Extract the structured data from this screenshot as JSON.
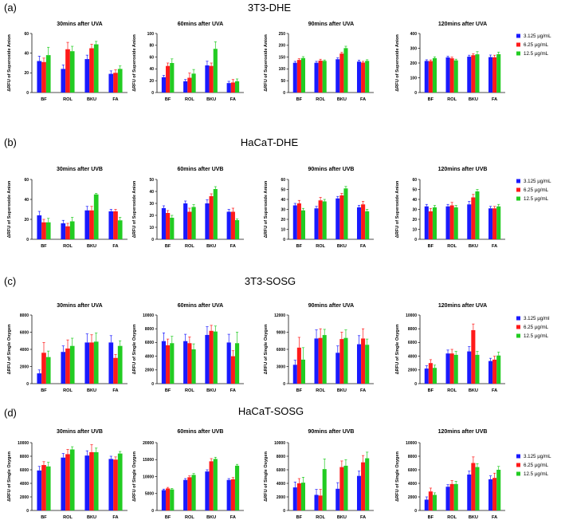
{
  "colors": {
    "s1": "#1a1aff",
    "s2": "#ff1a1a",
    "s3": "#22cc22"
  },
  "panels": [
    {
      "letter": "(a)",
      "title": "3T3-DHE",
      "legend": [
        "3.125 µg/mL",
        "6.25 µg/mL",
        "12.5 µg/mL"
      ]
    },
    {
      "letter": "(b)",
      "title": "HaCaT-DHE",
      "legend": [
        "3.125 µg/mL",
        "6.25 µg/mL",
        "12.5 µg/mL"
      ]
    },
    {
      "letter": "(c)",
      "title": "3T3-SOSG",
      "legend": [
        "3.125 µg/ml",
        "6.25 µg/mL",
        "12.5 µg/mL"
      ]
    },
    {
      "letter": "(d)",
      "title": "HaCaT-SOSG",
      "legend": [
        "3.125 µg/mL",
        "6.25 µg/mL",
        "12.5 µg/mL"
      ]
    }
  ],
  "chart_data": [
    {
      "type": "bar",
      "panel": "(a)",
      "title": "30mins after UVA",
      "ylabel": "ΔRFU of Superoxide Anion",
      "categories": [
        "BF",
        "ROL",
        "BKU",
        "FA"
      ],
      "ylim": [
        0,
        60
      ],
      "yticks": [
        "0",
        "20",
        "40",
        "60"
      ],
      "series": [
        {
          "name": "3.125 µg/mL",
          "values": [
            32,
            24,
            34,
            19
          ],
          "errors": [
            5,
            4,
            4,
            3
          ]
        },
        {
          "name": "6.25 µg/mL",
          "values": [
            31,
            44,
            45,
            20
          ],
          "errors": [
            4,
            7,
            4,
            3
          ]
        },
        {
          "name": "12.5 µg/mL",
          "values": [
            38,
            42,
            49,
            24
          ],
          "errors": [
            8,
            5,
            3,
            3
          ]
        }
      ]
    },
    {
      "type": "bar",
      "panel": "(a)",
      "title": "60mins after UVA",
      "ylabel": "ΔRFU of Superoxide Anion",
      "categories": [
        "BF",
        "ROL",
        "BKU",
        "FA"
      ],
      "ylim": [
        0,
        100
      ],
      "yticks": [
        "0",
        "20",
        "40",
        "60",
        "80",
        "100"
      ],
      "series": [
        {
          "name": "3.125 µg/mL",
          "values": [
            26,
            19,
            46,
            16
          ],
          "errors": [
            3,
            3,
            7,
            3
          ]
        },
        {
          "name": "6.25 µg/mL",
          "values": [
            45,
            25,
            45,
            17
          ],
          "errors": [
            5,
            8,
            5,
            5
          ]
        },
        {
          "name": "12.5 µg/mL",
          "values": [
            50,
            32,
            74,
            19
          ],
          "errors": [
            7,
            7,
            12,
            4
          ]
        }
      ]
    },
    {
      "type": "bar",
      "panel": "(a)",
      "title": "90mins after UVA",
      "ylabel": "ΔRFU of Superoxide Anion",
      "categories": [
        "BF",
        "ROL",
        "BKU",
        "FA"
      ],
      "ylim": [
        0,
        250
      ],
      "yticks": [
        "0",
        "50",
        "100",
        "150",
        "200",
        "250"
      ],
      "series": [
        {
          "name": "3.125 µg/mL",
          "values": [
            126,
            126,
            141,
            131
          ],
          "errors": [
            6,
            6,
            6,
            6
          ]
        },
        {
          "name": "6.25 µg/mL",
          "values": [
            138,
            135,
            165,
            127
          ],
          "errors": [
            5,
            6,
            5,
            5
          ]
        },
        {
          "name": "12.5 µg/mL",
          "values": [
            146,
            134,
            188,
            134
          ],
          "errors": [
            6,
            4,
            8,
            5
          ]
        }
      ]
    },
    {
      "type": "bar",
      "panel": "(a)",
      "title": "120mins after UVA",
      "ylabel": "ΔRFU of Superoxide Anion",
      "categories": [
        "BF",
        "ROL",
        "BKU",
        "FA"
      ],
      "ylim": [
        0,
        400
      ],
      "yticks": [
        "0",
        "100",
        "200",
        "300",
        "400"
      ],
      "series": [
        {
          "name": "3.125 µg/mL",
          "values": [
            214,
            238,
            243,
            240
          ],
          "errors": [
            8,
            8,
            10,
            14
          ]
        },
        {
          "name": "6.25 µg/mL",
          "values": [
            213,
            232,
            253,
            239
          ],
          "errors": [
            8,
            8,
            10,
            14
          ]
        },
        {
          "name": "12.5 µg/mL",
          "values": [
            233,
            218,
            259,
            260
          ],
          "errors": [
            9,
            8,
            18,
            14
          ]
        }
      ]
    },
    {
      "type": "bar",
      "panel": "(b)",
      "title": "30mins after UVB",
      "ylabel": "ΔRFU of Superoxide Anion",
      "categories": [
        "BF",
        "ROL",
        "BKU",
        "FA"
      ],
      "ylim": [
        0,
        60
      ],
      "yticks": [
        "0",
        "20",
        "40",
        "60"
      ],
      "series": [
        {
          "name": "3.125 µg/mL",
          "values": [
            24,
            16,
            29,
            28
          ],
          "errors": [
            4,
            3,
            4,
            2
          ]
        },
        {
          "name": "6.25 µg/mL",
          "values": [
            17,
            13,
            29,
            28
          ],
          "errors": [
            3,
            3,
            4,
            2
          ]
        },
        {
          "name": "12.5 µg/mL",
          "values": [
            17,
            18,
            45,
            19
          ],
          "errors": [
            4,
            4,
            1,
            3
          ]
        }
      ]
    },
    {
      "type": "bar",
      "panel": "(b)",
      "title": "60mins after UVB",
      "ylabel": "ΔRFU of Superoxide Anion",
      "categories": [
        "BF",
        "ROL",
        "BKU",
        "FA"
      ],
      "ylim": [
        0,
        50
      ],
      "yticks": [
        "0",
        "10",
        "20",
        "30",
        "40",
        "50"
      ],
      "series": [
        {
          "name": "3.125 µg/mL",
          "values": [
            26,
            30,
            30,
            23
          ],
          "errors": [
            2,
            2,
            3,
            2
          ]
        },
        {
          "name": "6.25 µg/mL",
          "values": [
            22,
            23,
            36,
            23
          ],
          "errors": [
            2,
            3,
            2,
            3
          ]
        },
        {
          "name": "12.5 µg/mL",
          "values": [
            18,
            27,
            42,
            16
          ],
          "errors": [
            2,
            2,
            2,
            1
          ]
        }
      ]
    },
    {
      "type": "bar",
      "panel": "(b)",
      "title": "90mins after UVB",
      "ylabel": "ΔRFU of Superoxide Anion",
      "categories": [
        "BF",
        "ROL",
        "BKU",
        "FA"
      ],
      "ylim": [
        0,
        60
      ],
      "yticks": [
        "0",
        "10",
        "20",
        "30",
        "40",
        "50",
        "60"
      ],
      "series": [
        {
          "name": "3.125 µg/mL",
          "values": [
            34,
            31,
            41,
            32
          ],
          "errors": [
            2,
            2,
            2,
            2
          ]
        },
        {
          "name": "6.25 µg/mL",
          "values": [
            36,
            39,
            44,
            35
          ],
          "errors": [
            3,
            3,
            2,
            3
          ]
        },
        {
          "name": "12.5 µg/mL",
          "values": [
            29,
            38,
            51,
            28
          ],
          "errors": [
            2,
            2,
            2,
            2
          ]
        }
      ]
    },
    {
      "type": "bar",
      "panel": "(b)",
      "title": "120mins after UVB",
      "ylabel": "ΔRFU of Superoxide Anion",
      "categories": [
        "BF",
        "ROL",
        "BKU",
        "FA"
      ],
      "ylim": [
        0,
        60
      ],
      "yticks": [
        "0",
        "10",
        "20",
        "30",
        "40",
        "50",
        "60"
      ],
      "series": [
        {
          "name": "3.125 µg/mL",
          "values": [
            33,
            33,
            35,
            31
          ],
          "errors": [
            2,
            2,
            3,
            2
          ]
        },
        {
          "name": "6.25 µg/mL",
          "values": [
            28,
            34,
            42,
            31
          ],
          "errors": [
            3,
            3,
            3,
            2
          ]
        },
        {
          "name": "12.5 µg/mL",
          "values": [
            32,
            32,
            48,
            33
          ],
          "errors": [
            2,
            2,
            2,
            2
          ]
        }
      ]
    },
    {
      "type": "bar",
      "panel": "(c)",
      "title": "30mins after UVA",
      "ylabel": "ΔRFU of Single Oxygen",
      "categories": [
        "BF",
        "ROL",
        "BKU",
        "FA"
      ],
      "ylim": [
        0,
        8000
      ],
      "yticks": [
        "0",
        "2000",
        "4000",
        "6000",
        "8000"
      ],
      "series": [
        {
          "name": "3.125 µg/ml",
          "values": [
            1200,
            3700,
            4800,
            4800
          ],
          "errors": [
            400,
            700,
            1000,
            800
          ]
        },
        {
          "name": "6.25 µg/mL",
          "values": [
            3600,
            4100,
            4800,
            3000
          ],
          "errors": [
            1200,
            1000,
            900,
            400
          ]
        },
        {
          "name": "12.5 µg/mL",
          "values": [
            3100,
            4400,
            4900,
            4400
          ],
          "errors": [
            700,
            900,
            1000,
            600
          ]
        }
      ]
    },
    {
      "type": "bar",
      "panel": "(c)",
      "title": "60mins after UVA",
      "ylabel": "ΔRFU of Single Oxygen",
      "categories": [
        "BF",
        "ROL",
        "BKU",
        "FA"
      ],
      "ylim": [
        0,
        10000
      ],
      "yticks": [
        "0",
        "2000",
        "4000",
        "6000",
        "8000",
        "10000"
      ],
      "series": [
        {
          "name": "3.125 µg/ml",
          "values": [
            6200,
            6200,
            7100,
            6000
          ],
          "errors": [
            1200,
            1000,
            1200,
            1200
          ]
        },
        {
          "name": "6.25 µg/mL",
          "values": [
            5600,
            5900,
            7700,
            4000
          ],
          "errors": [
            900,
            900,
            800,
            800
          ]
        },
        {
          "name": "12.5 µg/mL",
          "values": [
            5900,
            5000,
            7600,
            5900
          ],
          "errors": [
            1000,
            800,
            800,
            1600
          ]
        }
      ]
    },
    {
      "type": "bar",
      "panel": "(c)",
      "title": "90mins after UVA",
      "ylabel": "ΔRFU of Single Oxygen",
      "categories": [
        "BF",
        "ROL",
        "BKU",
        "FA"
      ],
      "ylim": [
        0,
        12000
      ],
      "yticks": [
        "0",
        "3000",
        "6000",
        "9000",
        "12000"
      ],
      "series": [
        {
          "name": "3.125 µg/ml",
          "values": [
            3300,
            7900,
            5400,
            6900
          ],
          "errors": [
            800,
            1500,
            1200,
            1500
          ]
        },
        {
          "name": "6.25 µg/mL",
          "values": [
            6300,
            8000,
            7800,
            7900
          ],
          "errors": [
            1800,
            1600,
            1200,
            1700
          ]
        },
        {
          "name": "12.5 µg/mL",
          "values": [
            4200,
            8500,
            8000,
            6800
          ],
          "errors": [
            2100,
            1000,
            1400,
            1000
          ]
        }
      ]
    },
    {
      "type": "bar",
      "panel": "(c)",
      "title": "120mins after UVA",
      "ylabel": "ΔRFU of Single Oxygen",
      "categories": [
        "BF",
        "ROL",
        "BKU",
        "FA"
      ],
      "ylim": [
        0,
        10000
      ],
      "yticks": [
        "0",
        "2000",
        "4000",
        "6000",
        "8000",
        "10000"
      ],
      "series": [
        {
          "name": "3.125 µg/ml",
          "values": [
            2200,
            4400,
            4700,
            3300
          ],
          "errors": [
            400,
            500,
            700,
            400
          ]
        },
        {
          "name": "6.25 µg/mL",
          "values": [
            3000,
            4400,
            7800,
            3500
          ],
          "errors": [
            500,
            600,
            900,
            500
          ]
        },
        {
          "name": "12.5 µg/mL",
          "values": [
            2300,
            4200,
            4200,
            4100
          ],
          "errors": [
            400,
            500,
            500,
            500
          ]
        }
      ]
    },
    {
      "type": "bar",
      "panel": "(d)",
      "title": "30mins after UVB",
      "ylabel": "ΔRFU of Single Oxygen",
      "categories": [
        "BF",
        "ROL",
        "BKU",
        "FA"
      ],
      "ylim": [
        0,
        10000
      ],
      "yticks": [
        "0",
        "2000",
        "4000",
        "6000",
        "8000",
        "10000"
      ],
      "series": [
        {
          "name": "3.125 µg/mL",
          "values": [
            5900,
            7800,
            8100,
            7600
          ],
          "errors": [
            600,
            600,
            700,
            400
          ]
        },
        {
          "name": "6.25 µg/mL",
          "values": [
            6700,
            8300,
            8600,
            7500
          ],
          "errors": [
            500,
            700,
            1100,
            400
          ]
        },
        {
          "name": "12.5 µg/mL",
          "values": [
            6500,
            9000,
            8600,
            8400
          ],
          "errors": [
            600,
            400,
            600,
            300
          ]
        }
      ]
    },
    {
      "type": "bar",
      "panel": "(d)",
      "title": "60mins after UVB",
      "ylabel": "ΔRFU of Single Oxygen",
      "categories": [
        "BF",
        "ROL",
        "BKU",
        "FA"
      ],
      "ylim": [
        0,
        20000
      ],
      "yticks": [
        "0",
        "5000",
        "10000",
        "15000",
        "20000"
      ],
      "series": [
        {
          "name": "3.125 µg/mL",
          "values": [
            6000,
            9000,
            11500,
            9000
          ],
          "errors": [
            300,
            400,
            500,
            400
          ]
        },
        {
          "name": "6.25 µg/mL",
          "values": [
            6500,
            9800,
            14500,
            9200
          ],
          "errors": [
            300,
            400,
            800,
            500
          ]
        },
        {
          "name": "12.5 µg/mL",
          "values": [
            6200,
            10500,
            15200,
            13200
          ],
          "errors": [
            300,
            400,
            500,
            400
          ]
        }
      ]
    },
    {
      "type": "bar",
      "panel": "(d)",
      "title": "90mins after UVB",
      "ylabel": "ΔRFU of Single Oxygen",
      "categories": [
        "BF",
        "ROL",
        "BKU",
        "FA"
      ],
      "ylim": [
        0,
        10000
      ],
      "yticks": [
        "0",
        "2000",
        "4000",
        "6000",
        "8000",
        "10000"
      ],
      "series": [
        {
          "name": "3.125 µg/mL",
          "values": [
            3400,
            2300,
            3200,
            5100
          ],
          "errors": [
            800,
            800,
            900,
            700
          ]
        },
        {
          "name": "6.25 µg/mL",
          "values": [
            4000,
            2200,
            6400,
            7100
          ],
          "errors": [
            700,
            900,
            900,
            1000
          ]
        },
        {
          "name": "12.5 µg/mL",
          "values": [
            4100,
            6100,
            6600,
            7700
          ],
          "errors": [
            800,
            1500,
            900,
            900
          ]
        }
      ]
    },
    {
      "type": "bar",
      "panel": "(d)",
      "title": "120mins after UVB",
      "ylabel": "ΔRFU of Single Oxygen",
      "categories": [
        "BF",
        "ROL",
        "BKU",
        "FA"
      ],
      "ylim": [
        0,
        10000
      ],
      "yticks": [
        "0",
        "2000",
        "4000",
        "6000",
        "8000",
        "10000"
      ],
      "series": [
        {
          "name": "3.125 µg/mL",
          "values": [
            1600,
            3500,
            5300,
            4600
          ],
          "errors": [
            400,
            300,
            500,
            500
          ]
        },
        {
          "name": "6.25 µg/mL",
          "values": [
            2800,
            3900,
            7000,
            4800
          ],
          "errors": [
            500,
            500,
            900,
            700
          ]
        },
        {
          "name": "12.5 µg/mL",
          "values": [
            2300,
            3900,
            6400,
            6000
          ],
          "errors": [
            300,
            400,
            500,
            500
          ]
        }
      ]
    }
  ]
}
